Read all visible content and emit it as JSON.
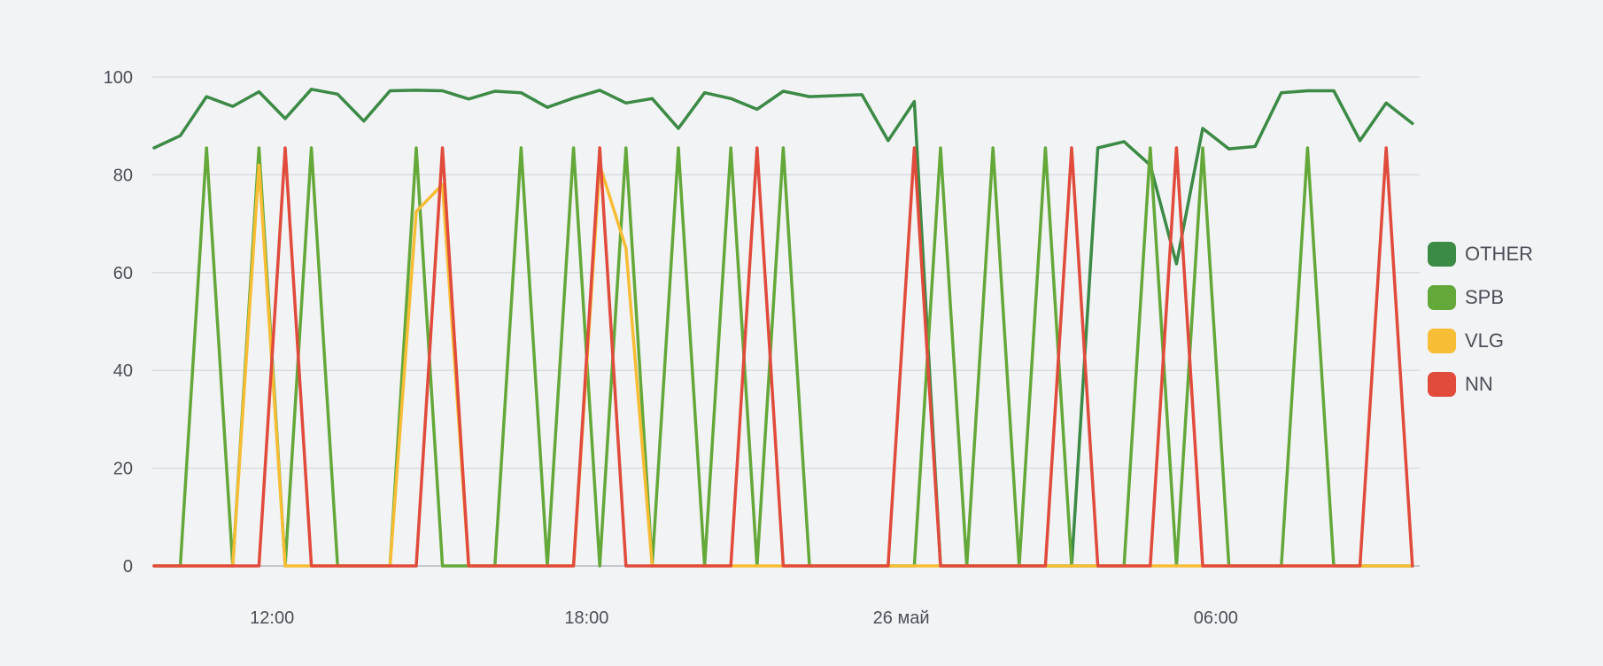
{
  "chart_data": {
    "type": "line",
    "title": "",
    "xlabel": "",
    "ylabel": "",
    "ylim": [
      0,
      100
    ],
    "grid": true,
    "legend_position": "right",
    "y_ticks": [
      0,
      20,
      40,
      60,
      80,
      100
    ],
    "x_tick_labels": [
      {
        "label": "12:00",
        "index": 4.5
      },
      {
        "label": "18:00",
        "index": 16.5
      },
      {
        "label": "26 май",
        "index": 28.5
      },
      {
        "label": "06:00",
        "index": 40.5
      }
    ],
    "series": [
      {
        "name": "OTHER",
        "color": "#3b8a45",
        "values": [
          85.5,
          88,
          96,
          94,
          97,
          91.5,
          97.5,
          96.5,
          91,
          97.2,
          97.3,
          97.2,
          95.5,
          97.1,
          96.8,
          93.8,
          95.7,
          97.3,
          94.7,
          95.6,
          89.5,
          96.8,
          95.6,
          93.4,
          97.1,
          96,
          96.2,
          96.4,
          87,
          95,
          0,
          0,
          0,
          0,
          0,
          0,
          85.5,
          86.8,
          82,
          61.8,
          89.5,
          85.3,
          85.8,
          96.8,
          97.2,
          97.2,
          87,
          94.7,
          90.5
        ]
      },
      {
        "name": "SPB",
        "color": "#65a83a",
        "values": [
          0,
          0,
          85.5,
          0,
          85.5,
          0,
          85.5,
          0,
          0,
          0,
          85.5,
          0,
          0,
          0,
          85.5,
          0,
          85.5,
          0,
          85.5,
          0,
          85.5,
          0,
          85.5,
          0,
          85.5,
          0,
          0,
          0,
          0,
          0,
          85.5,
          0,
          85.5,
          0,
          85.5,
          0,
          0,
          0,
          85.5,
          0,
          85.5,
          0,
          0,
          0,
          85.5,
          0,
          0,
          0,
          0
        ]
      },
      {
        "name": "VLG",
        "color": "#f7bd34",
        "values": [
          0,
          0,
          0,
          0,
          82,
          0,
          0,
          0,
          0,
          0,
          72.5,
          78,
          0,
          0,
          0,
          0,
          0,
          82,
          65,
          0,
          0,
          0,
          0,
          0,
          0,
          0,
          0,
          0,
          0,
          0,
          0,
          0,
          0,
          0,
          0,
          0,
          0,
          0,
          0,
          0,
          0,
          0,
          0,
          0,
          0,
          0,
          0,
          0,
          0
        ]
      },
      {
        "name": "NN",
        "color": "#e04b3c",
        "values": [
          0,
          0,
          0,
          0,
          0,
          85.5,
          0,
          0,
          0,
          0,
          0,
          85.5,
          0,
          0,
          0,
          0,
          0,
          85.5,
          0,
          0,
          0,
          0,
          0,
          85.5,
          0,
          0,
          0,
          0,
          0,
          85.5,
          0,
          0,
          0,
          0,
          0,
          85.5,
          0,
          0,
          0,
          85.5,
          0,
          0,
          0,
          0,
          0,
          0,
          0,
          85.5,
          0
        ]
      }
    ]
  }
}
